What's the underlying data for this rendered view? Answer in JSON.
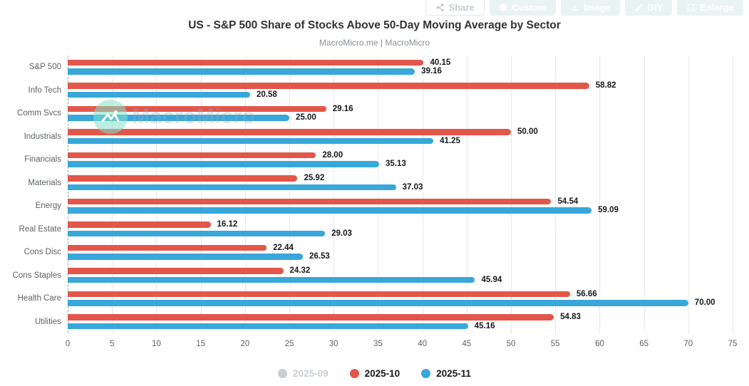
{
  "toolbar": {
    "buttons": [
      {
        "label": "Share",
        "icon": "share-icon"
      },
      {
        "label": "Custom",
        "icon": "gear-icon"
      },
      {
        "label": "Image",
        "icon": "download-icon"
      },
      {
        "label": "DIY",
        "icon": "pencil-icon"
      },
      {
        "label": "Enlarge",
        "icon": "expand-icon"
      }
    ]
  },
  "header": {
    "title": "US - S&P 500 Share of Stocks Above 50-Day Moving Average by Sector",
    "subtitle": "MacroMicro.me | MacroMicro"
  },
  "watermark": {
    "text": "MacroMicro",
    "icon": "macromicro-logo-icon",
    "circle_color": "#84e2cb"
  },
  "chart_data": {
    "type": "bar",
    "orientation": "horizontal",
    "title": "US - S&P 500 Share of Stocks Above 50-Day Moving Average by Sector",
    "xlabel": "",
    "ylabel": "",
    "xlim": [
      0,
      75
    ],
    "xticks": [
      0,
      5,
      10,
      15,
      20,
      25,
      30,
      35,
      40,
      45,
      50,
      55,
      60,
      65,
      70,
      75
    ],
    "grid": true,
    "value_labels": true,
    "legend_position": "bottom",
    "categories": [
      "S&P 500",
      "Info Tech",
      "Comm Svcs",
      "Industrials",
      "Financials",
      "Materials",
      "Energy",
      "Real Estate",
      "Cons Disc",
      "Cons Staples",
      "Health Care",
      "Utilities"
    ],
    "series": [
      {
        "name": "2025-09",
        "color": "#c9ced3",
        "visible": false,
        "values": null
      },
      {
        "name": "2025-10",
        "color": "#e2574a",
        "visible": true,
        "values": [
          40.15,
          58.82,
          29.16,
          50.0,
          28.0,
          25.92,
          54.54,
          16.12,
          22.44,
          24.32,
          56.66,
          54.83
        ]
      },
      {
        "name": "2025-11",
        "color": "#38a7da",
        "visible": true,
        "values": [
          39.16,
          20.58,
          25.0,
          41.25,
          35.13,
          37.03,
          59.09,
          29.03,
          26.53,
          45.94,
          70.0,
          45.16
        ]
      }
    ]
  }
}
